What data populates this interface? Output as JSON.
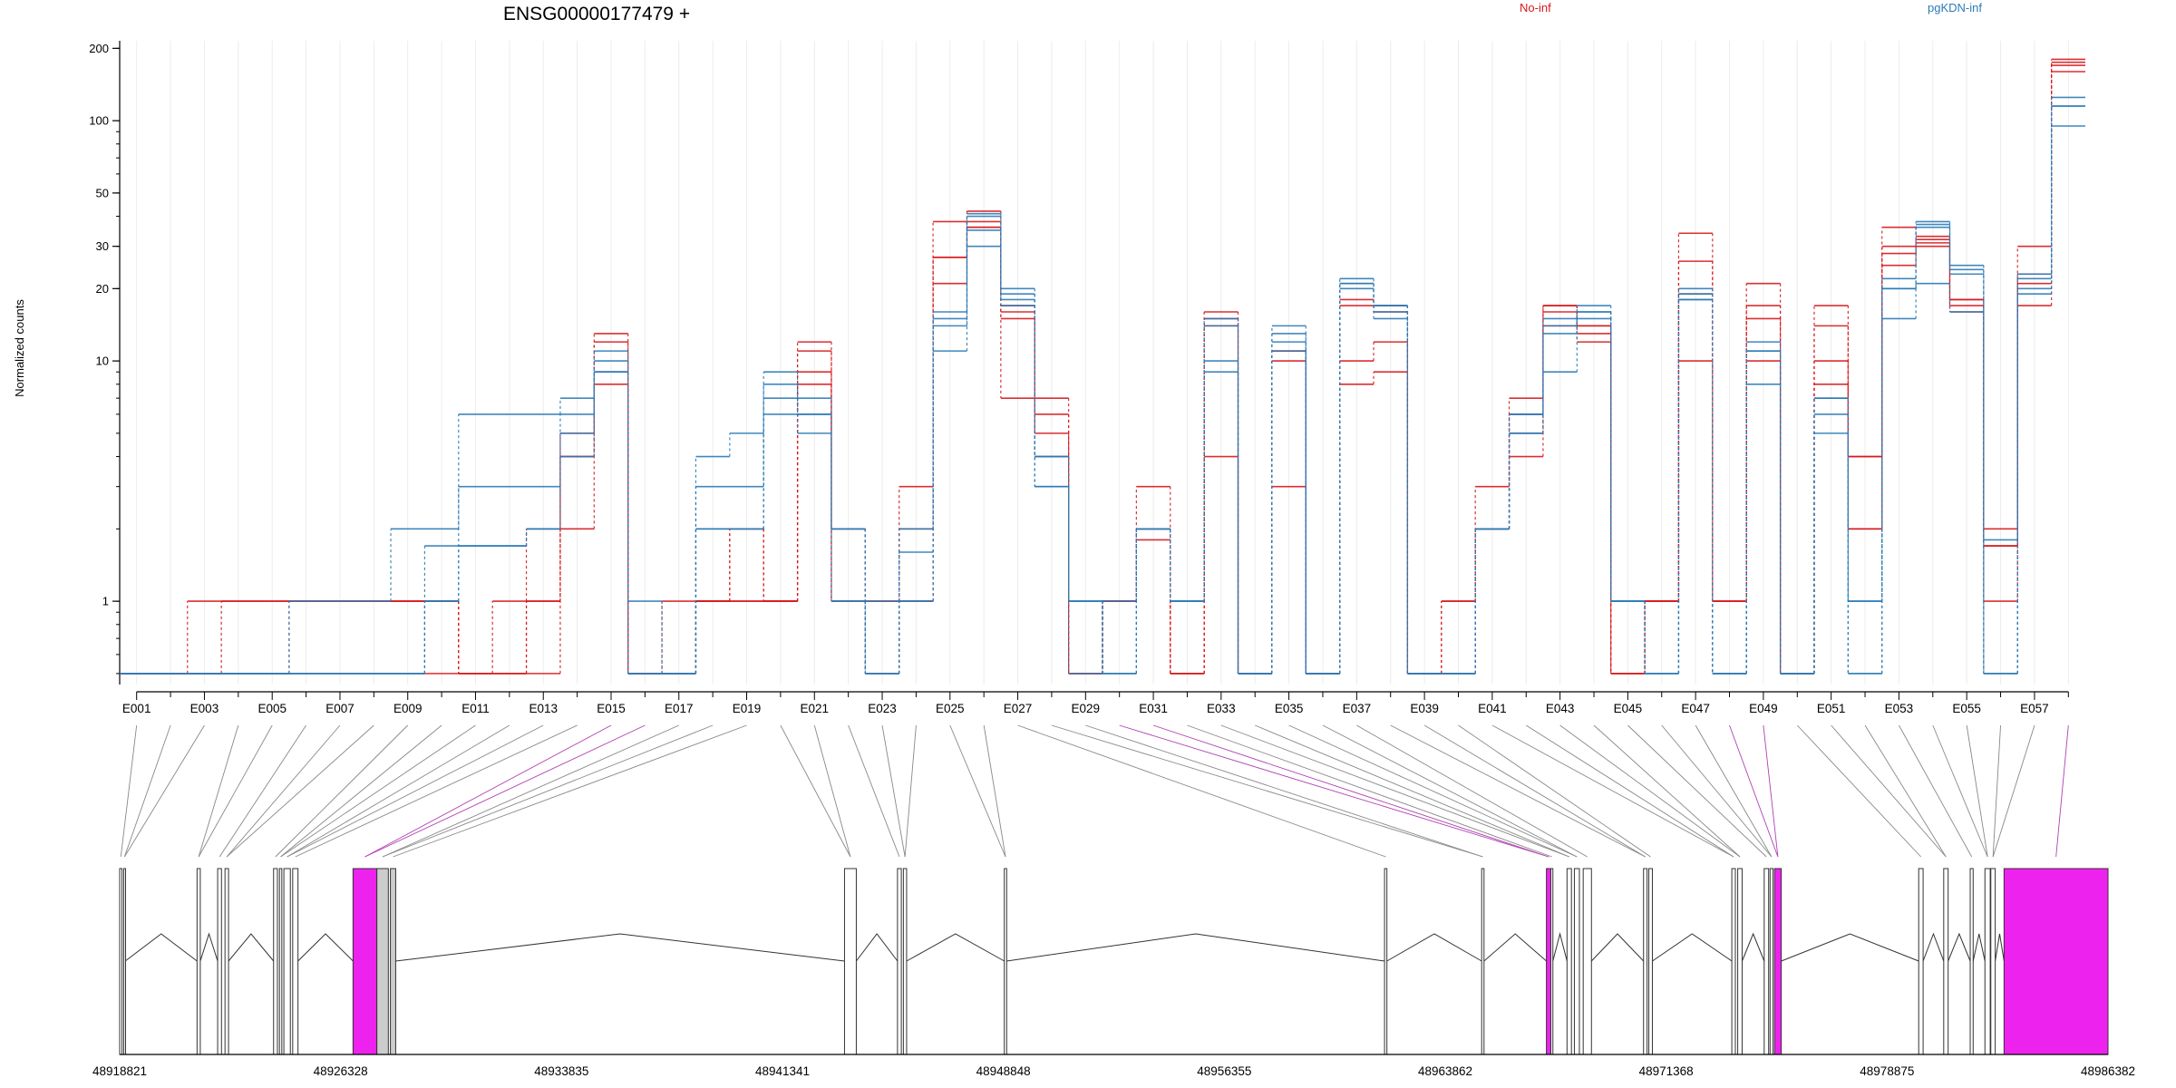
{
  "header": {
    "title": "ENSG00000177479 +",
    "legend": [
      {
        "label": "No-inf",
        "color": "#d7191c"
      },
      {
        "label": "pgKDN-inf",
        "color": "#2c7bb6"
      }
    ]
  },
  "colors": {
    "no_inf": "#d7191c",
    "pgkdn_inf": "#2c7bb6",
    "special_exon": "#ee22ee",
    "gray_exon": "#cccccc"
  },
  "chart_data": {
    "type": "line",
    "title": "ENSG00000177479 +",
    "ylabel": "Normalized counts",
    "yscale": "log",
    "ylim": [
      0.45,
      215
    ],
    "yticks": [
      1,
      10,
      20,
      30,
      50,
      100,
      200
    ],
    "grid": true,
    "legend_position": "top-right",
    "categories": [
      "E001",
      "E002",
      "E003",
      "E004",
      "E005",
      "E006",
      "E007",
      "E008",
      "E009",
      "E010",
      "E011",
      "E012",
      "E013",
      "E014",
      "E015",
      "E016",
      "E017",
      "E018",
      "E019",
      "E020",
      "E021",
      "E022",
      "E023",
      "E024",
      "E025",
      "E026",
      "E027",
      "E028",
      "E029",
      "E030",
      "E031",
      "E032",
      "E033",
      "E034",
      "E035",
      "E036",
      "E037",
      "E038",
      "E039",
      "E040",
      "E041",
      "E042",
      "E043",
      "E044",
      "E045",
      "E046",
      "E047",
      "E048",
      "E049",
      "E050",
      "E051",
      "E052",
      "E053",
      "E054",
      "E055",
      "E056",
      "E057",
      "E058"
    ],
    "category_labels": [
      "E001",
      "E003",
      "E005",
      "E007",
      "E009",
      "E011",
      "E013",
      "E015",
      "E017",
      "E019",
      "E021",
      "E023",
      "E025",
      "E027",
      "E029",
      "E031",
      "E033",
      "E035",
      "E037",
      "E039",
      "E041",
      "E043",
      "E045",
      "E047",
      "E049",
      "E051",
      "E053",
      "E055",
      "E057"
    ],
    "series": [
      {
        "name": "No-inf",
        "values": [
          0.5,
          0.5,
          0.5,
          1,
          1,
          1,
          1,
          1,
          1,
          1,
          0.5,
          0.5,
          1,
          4,
          13,
          0.5,
          1,
          1,
          1,
          1,
          12,
          2,
          1,
          3,
          38,
          36,
          17,
          4,
          0.5,
          1,
          3,
          0.5,
          16,
          0.5,
          11,
          0.5,
          18,
          17,
          0.5,
          1,
          2,
          7,
          17,
          13,
          0.5,
          1,
          34,
          1,
          21,
          0.5,
          17,
          4,
          36,
          33,
          18,
          2,
          30,
          175
        ]
      },
      {
        "name": "No-inf",
        "values": [
          0.5,
          0.5,
          1,
          1,
          1,
          1,
          1,
          1,
          1,
          1,
          0.5,
          0.5,
          0.5,
          5,
          8,
          0.5,
          0.5,
          1,
          1,
          1,
          9,
          2,
          1,
          2,
          27,
          42,
          7,
          7,
          0.5,
          1,
          1.8,
          0.5,
          4,
          0.5,
          3,
          0.5,
          10,
          12,
          0.5,
          0.5,
          2,
          4,
          14,
          12,
          0.5,
          1,
          10,
          1,
          10,
          0.5,
          14,
          4,
          30,
          30,
          16,
          1.7,
          17,
          160
        ]
      },
      {
        "name": "No-inf",
        "values": [
          0.5,
          0.5,
          0.5,
          0.5,
          0.5,
          1,
          1,
          1,
          1,
          1,
          0.5,
          0.5,
          1,
          2,
          9,
          0.5,
          0.5,
          1,
          2,
          1,
          8,
          1,
          0.5,
          1,
          21,
          38,
          16,
          6,
          0.5,
          1,
          2,
          0.5,
          15,
          0.5,
          10,
          0.5,
          8,
          9,
          0.5,
          1,
          3,
          6,
          16,
          14,
          0.5,
          1,
          26,
          1,
          15,
          0.5,
          8,
          2,
          25,
          31,
          17,
          1,
          23,
          170
        ]
      },
      {
        "name": "No-inf",
        "values": [
          0.5,
          0.5,
          0.5,
          0.5,
          0.5,
          0.5,
          0.5,
          0.5,
          0.5,
          0.5,
          0.5,
          1,
          2,
          4,
          12,
          0.5,
          0.5,
          1,
          2,
          1,
          11,
          1,
          0.5,
          1,
          27,
          36,
          15,
          5,
          0.5,
          1,
          2,
          0.5,
          14,
          0.5,
          11,
          0.5,
          17,
          16,
          0.5,
          0.5,
          2,
          5,
          17,
          14,
          0.5,
          1,
          19,
          0.5,
          17,
          0.5,
          10,
          2,
          28,
          32,
          18,
          1.7,
          21,
          180
        ]
      },
      {
        "name": "pgKDN-inf",
        "values": [
          0.5,
          0.5,
          0.5,
          0.5,
          0.5,
          0.5,
          0.5,
          0.5,
          0.5,
          1,
          6,
          6,
          6,
          7,
          11,
          1,
          0.5,
          4,
          5,
          9,
          6,
          2,
          1,
          2,
          15,
          30,
          20,
          3,
          1,
          0.5,
          2,
          1,
          10,
          0.5,
          13,
          0.5,
          22,
          17,
          0.5,
          0.5,
          2,
          6,
          13,
          17,
          1,
          0.5,
          20,
          0.5,
          11,
          0.5,
          6,
          1,
          15,
          21,
          16,
          0.5,
          20,
          95
        ]
      },
      {
        "name": "pgKDN-inf",
        "values": [
          0.5,
          0.5,
          0.5,
          0.5,
          0.5,
          1,
          1,
          1,
          2,
          2,
          3,
          3,
          3,
          6,
          10,
          0.5,
          0.5,
          3,
          3,
          6,
          5,
          2,
          0.5,
          1.6,
          11,
          35,
          18,
          3,
          1,
          0.5,
          2,
          1,
          9,
          0.5,
          14,
          0.5,
          21,
          15,
          0.5,
          0.5,
          2,
          6,
          9,
          16,
          1,
          0.5,
          18,
          0.5,
          8,
          0.5,
          5,
          1,
          20,
          36,
          24,
          1.8,
          19,
          115
        ]
      },
      {
        "name": "pgKDN-inf",
        "values": [
          0.5,
          0.5,
          0.5,
          0.5,
          0.5,
          0.5,
          0.5,
          0.5,
          0.5,
          1.7,
          1.7,
          1.7,
          2,
          4,
          9,
          0.5,
          0.5,
          2,
          2,
          8,
          7,
          1,
          0.5,
          1,
          14,
          40,
          17,
          4,
          1,
          0.5,
          2,
          1,
          15,
          0.5,
          11,
          0.5,
          21,
          16,
          0.5,
          0.5,
          2,
          5,
          14,
          15,
          1,
          0.5,
          18,
          0.5,
          12,
          0.5,
          7,
          0.5,
          22,
          37,
          23,
          0.5,
          22,
          125
        ]
      },
      {
        "name": "pgKDN-inf",
        "values": [
          0.5,
          0.5,
          0.5,
          0.5,
          0.5,
          0.5,
          0.5,
          0.5,
          0.5,
          1,
          1.7,
          1.7,
          2,
          5,
          9,
          0.5,
          0.5,
          2,
          2,
          7,
          6,
          1,
          0.5,
          1,
          16,
          41,
          19,
          4,
          0.5,
          1,
          2,
          1,
          14,
          0.5,
          12,
          0.5,
          20,
          17,
          0.5,
          0.5,
          2,
          5,
          15,
          16,
          1,
          0.5,
          19,
          0.5,
          11,
          0.5,
          7,
          0.5,
          20,
          38,
          25,
          0.5,
          23,
          115
        ]
      }
    ]
  },
  "gene_model": {
    "start": 48918821,
    "end": 48986382,
    "axis_labels": [
      "48918821",
      "48926328",
      "48933835",
      "48941341",
      "48948848",
      "48956355",
      "48963862",
      "48971368",
      "48978875",
      "48986382"
    ],
    "exons": [
      {
        "s": 48918821,
        "e": 48918900
      },
      {
        "s": 48918960,
        "e": 48919010
      },
      {
        "s": 48921450,
        "e": 48921560
      },
      {
        "s": 48922150,
        "e": 48922280
      },
      {
        "s": 48922400,
        "e": 48922520
      },
      {
        "s": 48924050,
        "e": 48924180
      },
      {
        "s": 48924250,
        "e": 48924330
      },
      {
        "s": 48924400,
        "e": 48924620
      },
      {
        "s": 48924700,
        "e": 48924880
      },
      {
        "s": 48926750,
        "e": 48927560,
        "color": "magenta"
      },
      {
        "s": 48927560,
        "e": 48927950,
        "color": "gray"
      },
      {
        "s": 48928020,
        "e": 48928200,
        "color": "gray"
      },
      {
        "s": 48943450,
        "e": 48943850
      },
      {
        "s": 48945250,
        "e": 48945380
      },
      {
        "s": 48945450,
        "e": 48945560
      },
      {
        "s": 48948880,
        "e": 48948960
      },
      {
        "s": 48961800,
        "e": 48961880
      },
      {
        "s": 48965100,
        "e": 48965180
      },
      {
        "s": 48967300,
        "e": 48967450,
        "color": "magenta"
      },
      {
        "s": 48967450,
        "e": 48967520
      },
      {
        "s": 48968000,
        "e": 48968150
      },
      {
        "s": 48968250,
        "e": 48968420
      },
      {
        "s": 48968550,
        "e": 48968830
      },
      {
        "s": 48970600,
        "e": 48970720
      },
      {
        "s": 48970780,
        "e": 48970900
      },
      {
        "s": 48973600,
        "e": 48973720
      },
      {
        "s": 48973800,
        "e": 48973950
      },
      {
        "s": 48974700,
        "e": 48974850
      },
      {
        "s": 48974900,
        "e": 48975000
      },
      {
        "s": 48975050,
        "e": 48975280,
        "color": "magenta"
      },
      {
        "s": 48979950,
        "e": 48980100
      },
      {
        "s": 48980800,
        "e": 48980950
      },
      {
        "s": 48981700,
        "e": 48981800
      },
      {
        "s": 48982200,
        "e": 48982380
      },
      {
        "s": 48982400,
        "e": 48982550
      },
      {
        "s": 48982850,
        "e": 48986382,
        "color": "magenta"
      }
    ]
  }
}
